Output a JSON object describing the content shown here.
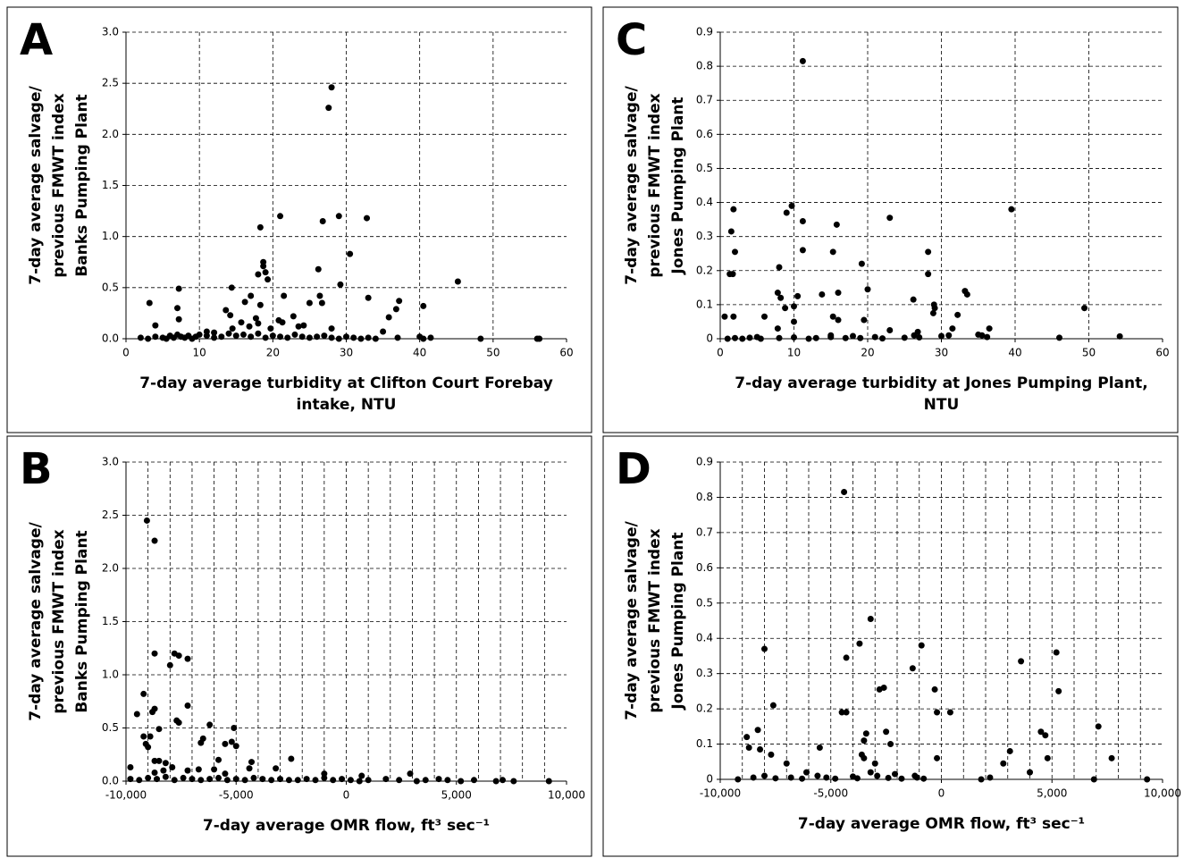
{
  "chart_data": [
    {
      "type": "scatter",
      "panel_label": "A",
      "color": "#000000",
      "grid": true,
      "ylabel_lines": [
        "7-day average salvage/",
        "previous FMWT index",
        "Banks Pumping Plant"
      ],
      "xlabel_lines": [
        "7-day average turbidity at Clifton Court Forebay",
        "intake, NTU"
      ],
      "xlim": [
        0,
        60
      ],
      "ylim": [
        0,
        3
      ],
      "xticks": [
        0,
        10,
        20,
        30,
        40,
        50,
        60
      ],
      "yticks": [
        {
          "value": 0,
          "label": "0.0"
        },
        0.5,
        {
          "value": 1,
          "label": "1.0"
        },
        1.5,
        {
          "value": 2,
          "label": "2.0"
        },
        2.5,
        {
          "value": 3,
          "label": "3.0"
        }
      ],
      "x": [
        28,
        27.6,
        21,
        18.3,
        26.8,
        29,
        32.8,
        30.5,
        18.7,
        18.7,
        19,
        19.3,
        18,
        26.2,
        45.2,
        7.2,
        14.4,
        29.2,
        3.2,
        21.5,
        17,
        26.4,
        26.7,
        25,
        33,
        37.2,
        36.8,
        35.8,
        40.5,
        18.3,
        16.2,
        13.6,
        14.2,
        22.8,
        20.8,
        21.3,
        15.7,
        7,
        7.2,
        4,
        23.5,
        24.2,
        35,
        19.7,
        11,
        12,
        14.5,
        16.8,
        17.7,
        18,
        28,
        2,
        3,
        4,
        5,
        5.5,
        6,
        6.5,
        7,
        7.5,
        8,
        8.5,
        9,
        9.5,
        10,
        11,
        12,
        13,
        14,
        15,
        16,
        17,
        18,
        19,
        20,
        21,
        22,
        23,
        24,
        25,
        26,
        27,
        28,
        29,
        30,
        31,
        32,
        33,
        34,
        37,
        40,
        40.5,
        41.5,
        48.3,
        56,
        56.3
      ],
      "y": [
        2.46,
        2.26,
        1.2,
        1.09,
        1.15,
        1.2,
        1.18,
        0.83,
        0.75,
        0.71,
        0.65,
        0.58,
        0.63,
        0.68,
        0.56,
        0.49,
        0.5,
        0.53,
        0.35,
        0.42,
        0.42,
        0.42,
        0.35,
        0.35,
        0.4,
        0.37,
        0.29,
        0.21,
        0.32,
        0.33,
        0.36,
        0.28,
        0.23,
        0.22,
        0.18,
        0.16,
        0.16,
        0.3,
        0.19,
        0.13,
        0.12,
        0.13,
        0.07,
        0.1,
        0.07,
        0.06,
        0.1,
        0.12,
        0.2,
        0.15,
        0.1,
        0.01,
        0,
        0.02,
        0.01,
        0,
        0.03,
        0.01,
        0.04,
        0.02,
        0.01,
        0.03,
        0,
        0.02,
        0.04,
        0.03,
        0.01,
        0.02,
        0.05,
        0.03,
        0.04,
        0.02,
        0.05,
        0.01,
        0.03,
        0.02,
        0.01,
        0.04,
        0.02,
        0.01,
        0.02,
        0.03,
        0.01,
        0,
        0.02,
        0.01,
        0,
        0.01,
        0,
        0.01,
        0.02,
        0,
        0.01,
        0,
        0,
        0
      ]
    },
    {
      "type": "scatter",
      "panel_label": "B",
      "color": "#000000",
      "grid": true,
      "x_grid_step": 1000,
      "ylabel_lines": [
        "7-day average salvage/",
        "previous FMWT index",
        "Banks Pumping Plant"
      ],
      "xlabel_lines": [
        "7-day average OMR flow, ft³ sec⁻¹"
      ],
      "xlim": [
        -10000,
        10000
      ],
      "ylim": [
        0,
        3
      ],
      "xticks": [
        {
          "value": -10000,
          "label": "-10,000"
        },
        {
          "value": -5000,
          "label": "-5,000"
        },
        0,
        {
          "value": 5000,
          "label": "5,000"
        },
        {
          "value": 10000,
          "label": "10,000"
        }
      ],
      "yticks": [
        {
          "value": 0,
          "label": "0.0"
        },
        0.5,
        {
          "value": 1,
          "label": "1.0"
        },
        1.5,
        {
          "value": 2,
          "label": "2.0"
        },
        2.5,
        {
          "value": 3,
          "label": "3.0"
        }
      ],
      "x": [
        -9050,
        -8700,
        -8700,
        -7800,
        -7600,
        -7200,
        -8000,
        -9200,
        -9500,
        -8800,
        -8700,
        -7200,
        -7700,
        -7600,
        -6200,
        -5100,
        -8500,
        -9200,
        -9100,
        -9000,
        -8900,
        -6600,
        -6500,
        -5500,
        -5200,
        -5000,
        -5800,
        -2500,
        -4300,
        -9800,
        -8700,
        -8500,
        -8200,
        -7900,
        -7200,
        -6700,
        -6000,
        -5500,
        -4400,
        -3200,
        -1000,
        2900,
        700,
        -8700,
        -8300,
        -9800,
        -9400,
        -9000,
        -8600,
        -8200,
        -7800,
        -7400,
        -7000,
        -6600,
        -6200,
        -5800,
        -5400,
        -5000,
        -4600,
        -4200,
        -3800,
        -3400,
        -3000,
        -2600,
        -2200,
        -1800,
        -1400,
        -1000,
        -600,
        -200,
        200,
        600,
        1000,
        1800,
        2400,
        3200,
        3600,
        4200,
        4600,
        5200,
        5800,
        6800,
        7100,
        7600,
        9200
      ],
      "y": [
        2.45,
        2.26,
        1.2,
        1.2,
        1.18,
        1.15,
        1.09,
        0.82,
        0.63,
        0.65,
        0.68,
        0.71,
        0.57,
        0.55,
        0.53,
        0.5,
        0.49,
        0.42,
        0.35,
        0.32,
        0.42,
        0.36,
        0.4,
        0.35,
        0.37,
        0.33,
        0.2,
        0.21,
        0.18,
        0.13,
        0.19,
        0.19,
        0.17,
        0.13,
        0.1,
        0.11,
        0.11,
        0.07,
        0.12,
        0.12,
        0.07,
        0.07,
        0.05,
        0.08,
        0.1,
        0.02,
        0.01,
        0.03,
        0.02,
        0.04,
        0.01,
        0.03,
        0.02,
        0.01,
        0.02,
        0.03,
        0.01,
        0.02,
        0.01,
        0.03,
        0.02,
        0.01,
        0.02,
        0.01,
        0.01,
        0.02,
        0.01,
        0.03,
        0.01,
        0.02,
        0.01,
        0,
        0.01,
        0.02,
        0.01,
        0,
        0.01,
        0.02,
        0.01,
        0,
        0.01,
        0,
        0.01,
        0,
        0
      ]
    },
    {
      "type": "scatter",
      "panel_label": "C",
      "color": "#000000",
      "grid": true,
      "ylabel_lines": [
        "7-day average salvage/",
        "previous FMWT index",
        "Jones Pumping Plant"
      ],
      "xlabel_lines": [
        "7-day average turbidity at Jones Pumping Plant,",
        "NTU"
      ],
      "xlim": [
        0,
        60
      ],
      "ylim": [
        0,
        0.9
      ],
      "xticks": [
        0,
        10,
        20,
        30,
        40,
        50,
        60
      ],
      "yticks": [
        0,
        0.1,
        0.2,
        0.3,
        0.4,
        0.5,
        0.6,
        0.7,
        0.8,
        0.9
      ],
      "x": [
        11.2,
        9.7,
        9,
        11.2,
        1.8,
        39.5,
        23,
        15.8,
        1.5,
        2,
        11.2,
        15.3,
        28.2,
        19.2,
        8,
        1.3,
        1.7,
        20,
        33.2,
        33.5,
        16,
        13.8,
        7.8,
        10.5,
        8.2,
        26.2,
        28.2,
        29,
        29.1,
        28.9,
        10,
        8.8,
        49.4,
        0.6,
        1.8,
        6,
        15.3,
        16,
        19.5,
        10,
        32.2,
        7.8,
        31.5,
        23,
        36.5,
        26.8,
        26.3,
        35.5,
        36.2,
        15,
        54.2,
        46,
        1,
        2,
        3,
        4,
        5,
        5.5,
        8,
        10,
        12,
        13,
        15,
        17,
        18,
        19,
        21,
        22,
        25,
        27,
        30,
        31,
        35
      ],
      "y": [
        0.815,
        0.39,
        0.37,
        0.345,
        0.38,
        0.38,
        0.355,
        0.335,
        0.315,
        0.255,
        0.26,
        0.255,
        0.255,
        0.22,
        0.21,
        0.19,
        0.19,
        0.145,
        0.14,
        0.13,
        0.135,
        0.13,
        0.135,
        0.125,
        0.12,
        0.115,
        0.19,
        0.1,
        0.09,
        0.075,
        0.095,
        0.09,
        0.09,
        0.065,
        0.065,
        0.065,
        0.065,
        0.055,
        0.055,
        0.05,
        0.07,
        0.03,
        0.03,
        0.025,
        0.03,
        0.02,
        0.01,
        0.01,
        0.005,
        0.01,
        0.007,
        0.003,
        0,
        0.002,
        0,
        0.003,
        0.005,
        0,
        0.002,
        0.004,
        0,
        0.002,
        0.005,
        0.002,
        0.008,
        0.002,
        0.005,
        0.001,
        0.003,
        0.004,
        0.008,
        0.01,
        0.012
      ]
    },
    {
      "type": "scatter",
      "panel_label": "D",
      "color": "#000000",
      "grid": true,
      "x_grid_step": 1000,
      "ylabel_lines": [
        "7-day average salvage/",
        "previous FMWT index",
        "Jones Pumping Plant"
      ],
      "xlabel_lines": [
        "7-day average OMR flow, ft³ sec⁻¹"
      ],
      "xlim": [
        -10000,
        10000
      ],
      "ylim": [
        0,
        0.9
      ],
      "xticks": [
        {
          "value": -10000,
          "label": "-10,000"
        },
        {
          "value": -5000,
          "label": "-5,000"
        },
        0,
        {
          "value": 5000,
          "label": "5,000"
        },
        {
          "value": 10000,
          "label": "10,000"
        }
      ],
      "yticks": [
        0,
        0.1,
        0.2,
        0.3,
        0.4,
        0.5,
        0.6,
        0.7,
        0.8,
        0.9
      ],
      "x": [
        -4400,
        -3200,
        -3700,
        -900,
        -8000,
        -4300,
        3600,
        5200,
        -1300,
        -2600,
        -2800,
        -300,
        5300,
        -7600,
        -4500,
        -4300,
        -200,
        400,
        7100,
        -8300,
        4500,
        -3400,
        -2500,
        -3500,
        -8800,
        -8700,
        -8200,
        -5500,
        -2300,
        -7700,
        -3500,
        -3600,
        -1200,
        -200,
        4800,
        4700,
        7700,
        2800,
        -7000,
        -6100,
        -3000,
        -3200,
        -2100,
        2200,
        3100,
        4000,
        -9200,
        -8500,
        -8000,
        -7500,
        -6800,
        -6300,
        -5600,
        -5200,
        -4800,
        -4000,
        -3800,
        -2900,
        -2400,
        -1800,
        -1100,
        -800,
        1800,
        6900,
        9300
      ],
      "y": [
        0.815,
        0.455,
        0.385,
        0.38,
        0.37,
        0.345,
        0.335,
        0.36,
        0.315,
        0.26,
        0.255,
        0.255,
        0.25,
        0.21,
        0.19,
        0.19,
        0.19,
        0.19,
        0.15,
        0.14,
        0.135,
        0.13,
        0.135,
        0.11,
        0.12,
        0.09,
        0.085,
        0.09,
        0.1,
        0.07,
        0.06,
        0.07,
        0.01,
        0.06,
        0.06,
        0.125,
        0.06,
        0.045,
        0.045,
        0.02,
        0.045,
        0.02,
        0.015,
        0.005,
        0.08,
        0.02,
        0,
        0.005,
        0.01,
        0.003,
        0.005,
        0.002,
        0.01,
        0.005,
        0.002,
        0.008,
        0.003,
        0.01,
        0.004,
        0.002,
        0.005,
        0.002,
        0,
        0,
        0
      ]
    }
  ]
}
